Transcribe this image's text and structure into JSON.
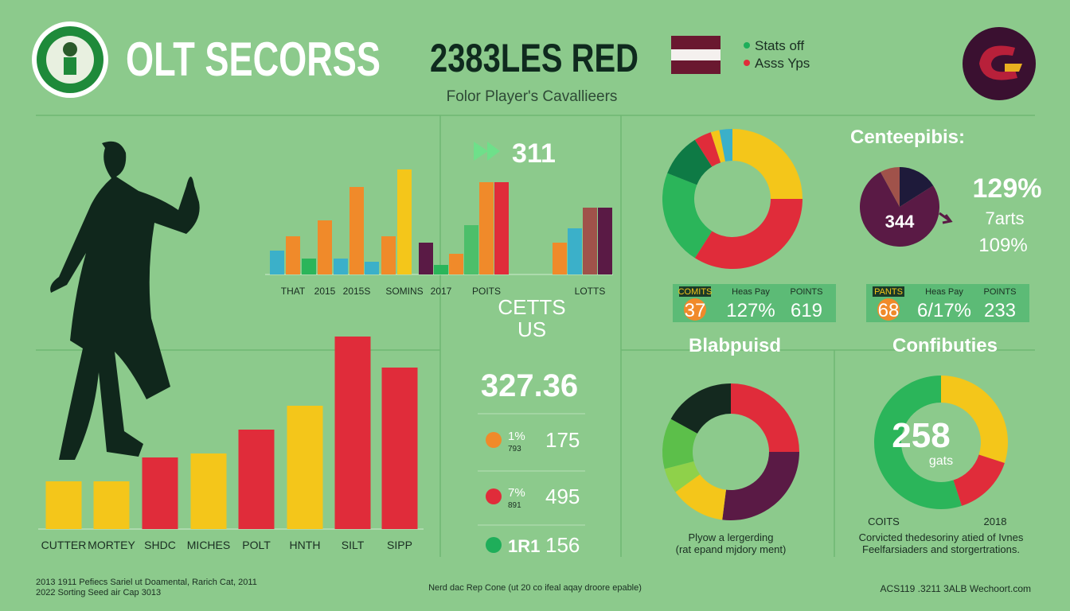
{
  "header": {
    "title": "OLT SECORSS",
    "headline": "2383LES RED",
    "subtitle": "Folor Player's Cavallieers",
    "legend": [
      {
        "label": "Stats off",
        "color": "#1fae5a"
      },
      {
        "label": "Asss Yps",
        "color": "#e02c3a"
      }
    ]
  },
  "highlight": "311",
  "middle": {
    "heading": [
      "CETTS",
      "US"
    ],
    "total": "327.36",
    "rows": [
      {
        "pct": "1%",
        "sub": "793",
        "value": "175",
        "color": "#f08a2a"
      },
      {
        "pct": "7%",
        "sub": "891",
        "value": "495",
        "color": "#e02c3a"
      },
      {
        "pct": "1R1",
        "value": "156",
        "color": "#1fae5a"
      }
    ]
  },
  "tables": [
    {
      "cells": [
        {
          "label": "COMITS",
          "value": "37"
        },
        {
          "label": "Heas Pay",
          "value": "127%"
        },
        {
          "label": "POINTS",
          "value": "619"
        }
      ]
    },
    {
      "cells": [
        {
          "label": "PANTS",
          "value": "68"
        },
        {
          "label": "Heas Pay",
          "value": "6/17%"
        },
        {
          "label": "POINTS",
          "value": "233"
        }
      ]
    }
  ],
  "side_stats": [
    "129%",
    "7arts",
    "109%"
  ],
  "footer": {
    "left": [
      "2013 1911 Pefiecs Sariel ut Doamental, Rarich Cat, 2011",
      "2022 Sorting Seed air Cap 3013"
    ],
    "center": "Nerd dac Rep Cone (ut 20 co ifeal aqay droore epable)",
    "right": "ACS119 .3211 3ALB Wechoort.com"
  },
  "chart_data": [
    {
      "type": "bar",
      "categories": [
        null,
        "THAT",
        null,
        "2015",
        null,
        "2015S",
        null,
        null,
        "SOMINS",
        null,
        "2017",
        null,
        null,
        "POITS",
        null,
        null,
        null,
        "LOTTS",
        null
      ],
      "values": [
        30,
        48,
        20,
        68,
        20,
        110,
        16,
        48,
        132,
        40,
        12,
        26,
        62,
        116,
        116,
        40,
        58,
        84,
        84
      ],
      "colors": [
        "#3bb0c9",
        "#f08a2a",
        "#2bb55a",
        "#f08a2a",
        "#3bb0c9",
        "#f08a2a",
        "#3bb0c9",
        "#f08a2a",
        "#f4c61a",
        "#5a1a45",
        "#2bb55a",
        "#f08a2a",
        "#4cbf6a",
        "#f08a2a",
        "#e02c3a",
        "#f08a2a",
        "#3bb0c9",
        "#a0524a",
        "#5a1a45"
      ]
    },
    {
      "type": "bar",
      "categories": [
        "CUTTER",
        "MORTEY",
        "SHDC",
        "MICHES",
        "POLT",
        "HNTH",
        "SILT",
        "SIPP"
      ],
      "values": [
        60,
        60,
        90,
        95,
        125,
        155,
        242,
        203
      ],
      "colors": [
        "#f4c61a",
        "#f4c61a",
        "#e02c3a",
        "#f4c61a",
        "#e02c3a",
        "#f4c61a",
        "#e02c3a",
        "#e02c3a"
      ]
    },
    {
      "type": "donut",
      "values": [
        25,
        34,
        22,
        10,
        4,
        2,
        3
      ],
      "colors": [
        "#f4c61a",
        "#e02c3a",
        "#2bb55a",
        "#0e7a45",
        "#e02c3a",
        "#f4c61a",
        "#3bb0c9"
      ]
    },
    {
      "type": "pie",
      "title": "Centeepibis:",
      "center_label": "344",
      "values": [
        16,
        76,
        8
      ],
      "colors": [
        "#1e1a3a",
        "#5a1a45",
        "#a0524a"
      ]
    },
    {
      "type": "donut",
      "title": "Blabpuisd",
      "values": [
        25,
        27,
        13,
        6,
        12,
        17
      ],
      "colors": [
        "#e02c3a",
        "#5a1a45",
        "#f4c61a",
        "#8fd14a",
        "#5cbf4a",
        "#14291f"
      ],
      "caption": [
        "Plyow a lergerding",
        "(rat epand mjdory ment)"
      ]
    },
    {
      "type": "donut",
      "title": "Confibuties",
      "center_label": "258",
      "center_sub": "gats",
      "annotations": [
        "COITS",
        "2018"
      ],
      "values": [
        30,
        15,
        55
      ],
      "colors": [
        "#f4c61a",
        "#e02c3a",
        "#2bb55a"
      ],
      "caption": [
        "Corvicted thedesoriny atied of Ivnes",
        "Feelfarsiaders and storgertrations."
      ]
    }
  ]
}
